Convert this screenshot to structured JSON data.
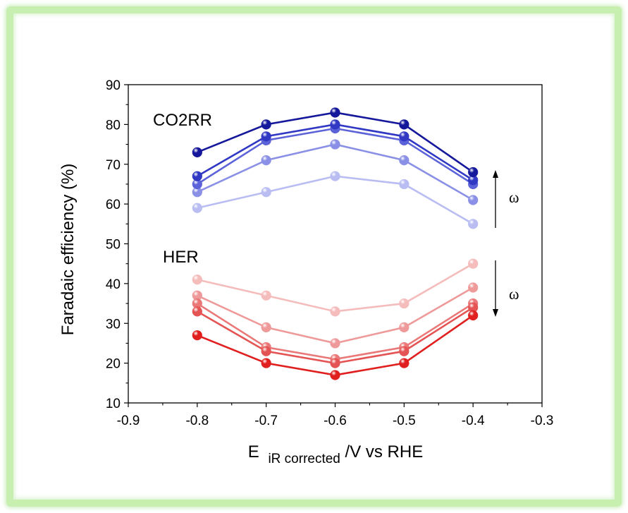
{
  "chart_data": {
    "type": "line",
    "xlabel_main": "E",
    "xlabel_sub": "iR corrected",
    "xlabel_rest": "/V vs RHE",
    "ylabel": "Faradaic efficiency (%)",
    "xlim": [
      -0.9,
      -0.3
    ],
    "ylim": [
      10,
      90
    ],
    "xticks": [
      -0.9,
      -0.8,
      -0.7,
      -0.6,
      -0.5,
      -0.4,
      -0.3
    ],
    "xtick_labels": [
      "-0.9",
      "-0.8",
      "-0.7",
      "-0.6",
      "-0.5",
      "-0.4",
      "-0.3"
    ],
    "yticks": [
      10,
      20,
      30,
      40,
      50,
      60,
      70,
      80,
      90
    ],
    "ytick_labels": [
      "10",
      "20",
      "30",
      "40",
      "50",
      "60",
      "70",
      "80",
      "90"
    ],
    "x": [
      -0.8,
      -0.7,
      -0.6,
      -0.5,
      -0.4
    ],
    "annotations": {
      "co2rr": "CO2RR",
      "her": "HER",
      "omega_up": "ω",
      "omega_down": "ω"
    },
    "series": [
      {
        "group": "CO2RR",
        "color": "#b9bdf2",
        "values": [
          59,
          63,
          67,
          65,
          55
        ]
      },
      {
        "group": "CO2RR",
        "color": "#8a90e6",
        "values": [
          63,
          71,
          75,
          71,
          61
        ]
      },
      {
        "group": "CO2RR",
        "color": "#5c63d9",
        "values": [
          65,
          76,
          79,
          76,
          65
        ]
      },
      {
        "group": "CO2RR",
        "color": "#3038c4",
        "values": [
          67,
          77,
          80,
          77,
          66
        ]
      },
      {
        "group": "CO2RR",
        "color": "#15189a",
        "values": [
          73,
          80,
          83,
          80,
          68
        ]
      },
      {
        "group": "HER",
        "color": "#f5bcbc",
        "values": [
          41,
          37,
          33,
          35,
          45
        ]
      },
      {
        "group": "HER",
        "color": "#ef9a9a",
        "values": [
          37,
          29,
          25,
          29,
          39
        ]
      },
      {
        "group": "HER",
        "color": "#ea7878",
        "values": [
          35,
          24,
          21,
          24,
          35
        ]
      },
      {
        "group": "HER",
        "color": "#e45454",
        "values": [
          33,
          23,
          20,
          23,
          34
        ]
      },
      {
        "group": "HER",
        "color": "#e01f1f",
        "values": [
          27,
          20,
          17,
          20,
          32
        ]
      }
    ]
  }
}
